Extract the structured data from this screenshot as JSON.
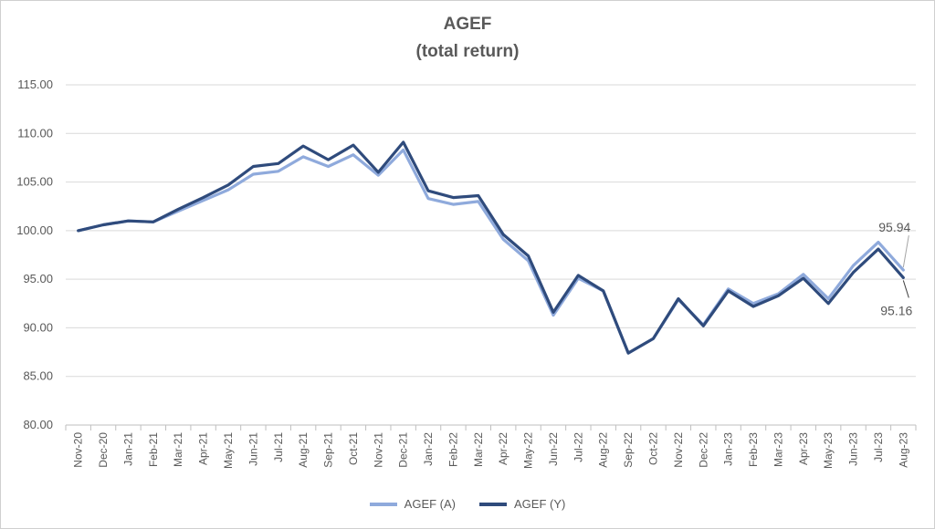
{
  "chart_data": {
    "type": "line",
    "title": "AGEF",
    "subtitle": "(total return)",
    "xlabel": "",
    "ylabel": "",
    "ylim": [
      80,
      115
    ],
    "yticks": [
      "80.00",
      "85.00",
      "90.00",
      "95.00",
      "100.00",
      "105.00",
      "110.00",
      "115.00"
    ],
    "grid": true,
    "legend_position": "bottom",
    "categories": [
      "Nov-20",
      "Dec-20",
      "Jan-21",
      "Feb-21",
      "Mar-21",
      "Apr-21",
      "May-21",
      "Jun-21",
      "Jul-21",
      "Aug-21",
      "Sep-21",
      "Oct-21",
      "Nov-21",
      "Dec-21",
      "Jan-22",
      "Feb-22",
      "Mar-22",
      "Apr-22",
      "May-22",
      "Jun-22",
      "Jul-22",
      "Aug-22",
      "Sep-22",
      "Oct-22",
      "Nov-22",
      "Dec-22",
      "Jan-23",
      "Feb-23",
      "Mar-23",
      "Apr-23",
      "May-23",
      "Jun-23",
      "Jul-23",
      "Aug-23"
    ],
    "series": [
      {
        "name": "AGEF (A)",
        "color": "#8faadc",
        "values": [
          100.0,
          100.6,
          101.0,
          100.9,
          102.0,
          103.1,
          104.2,
          105.8,
          106.1,
          107.6,
          106.6,
          107.8,
          105.7,
          108.3,
          103.3,
          102.7,
          103.0,
          99.1,
          96.9,
          91.3,
          95.1,
          93.8,
          87.4,
          88.9,
          92.9,
          90.3,
          94.0,
          92.5,
          93.5,
          95.5,
          93.0,
          96.4,
          98.8,
          95.94
        ],
        "end_label": "95.94"
      },
      {
        "name": "AGEF (Y)",
        "color": "#2f4b7c",
        "values": [
          100.0,
          100.6,
          101.0,
          100.9,
          102.2,
          103.4,
          104.7,
          106.6,
          106.9,
          108.7,
          107.3,
          108.8,
          106.0,
          109.1,
          104.1,
          103.4,
          103.6,
          99.6,
          97.4,
          91.6,
          95.4,
          93.8,
          87.4,
          88.9,
          93.0,
          90.2,
          93.8,
          92.2,
          93.3,
          95.1,
          92.5,
          95.7,
          98.1,
          95.16
        ],
        "end_label": "95.16"
      }
    ]
  }
}
